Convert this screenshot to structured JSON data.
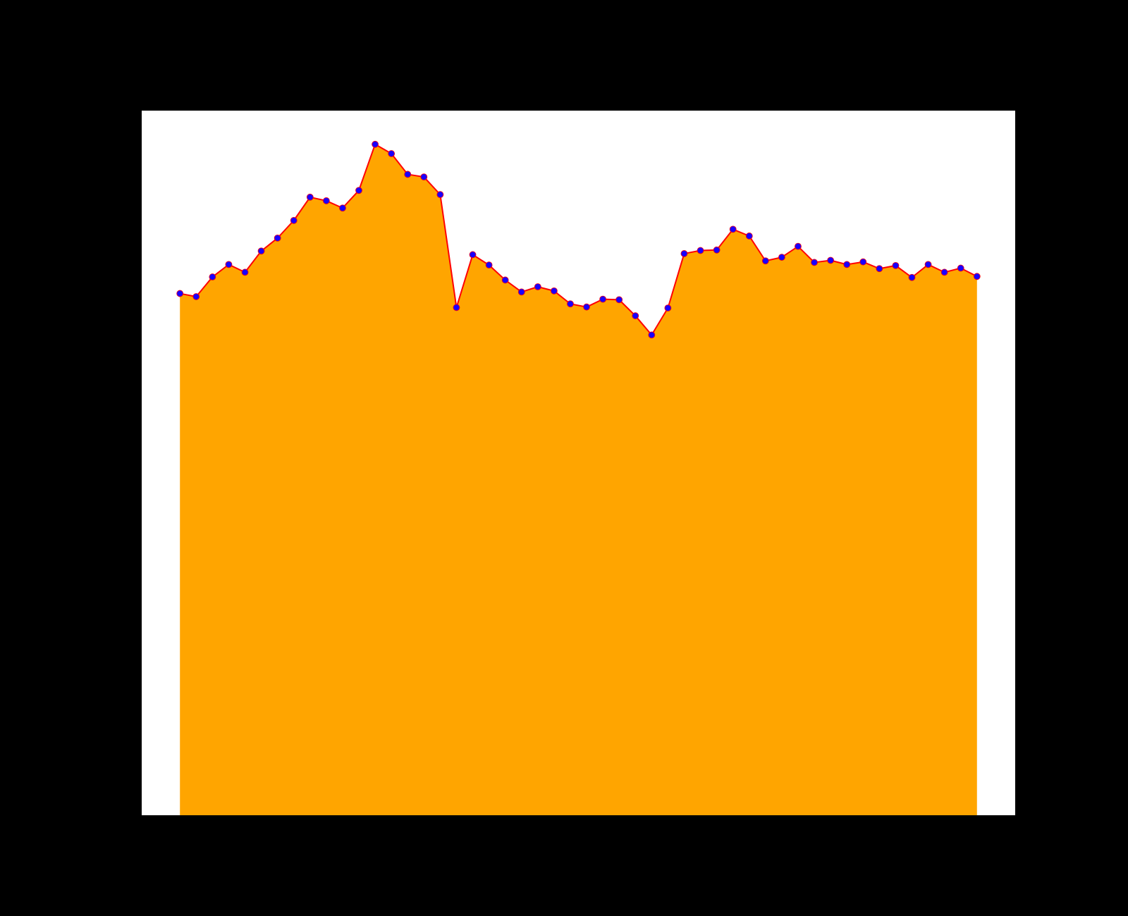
{
  "chart_data": {
    "type": "area",
    "title": "",
    "xlabel": "",
    "ylabel": "",
    "grid": false,
    "legend": "none",
    "colors": {
      "background": "#000000",
      "plot_background": "#ffffff",
      "fill": "#ffa500",
      "line": "#ff0000",
      "marker": "#1a00ff"
    },
    "x": [
      0,
      1,
      2,
      3,
      4,
      5,
      6,
      7,
      8,
      9,
      10,
      11,
      12,
      13,
      14,
      15,
      16,
      17,
      18,
      19,
      20,
      21,
      22,
      23,
      24,
      25,
      26,
      27,
      28,
      29,
      30,
      31,
      32,
      33,
      34,
      35,
      36,
      37,
      38,
      39,
      40,
      41,
      42,
      43,
      44,
      45,
      46,
      47,
      48,
      49
    ],
    "values": [
      10.07,
      10.01,
      10.39,
      10.63,
      10.48,
      10.89,
      11.14,
      11.48,
      11.93,
      11.86,
      11.72,
      12.06,
      12.95,
      12.77,
      12.37,
      12.32,
      11.98,
      9.8,
      10.82,
      10.62,
      10.33,
      10.1,
      10.2,
      10.12,
      9.87,
      9.81,
      9.96,
      9.95,
      9.64,
      9.27,
      9.79,
      10.84,
      10.9,
      10.91,
      11.31,
      11.18,
      10.7,
      10.77,
      10.98,
      10.67,
      10.71,
      10.63,
      10.68,
      10.55,
      10.61,
      10.38,
      10.63,
      10.48,
      10.56,
      10.4
    ],
    "xlim": [
      -2.35,
      51.35
    ],
    "ylim": [
      0,
      13.6
    ]
  }
}
